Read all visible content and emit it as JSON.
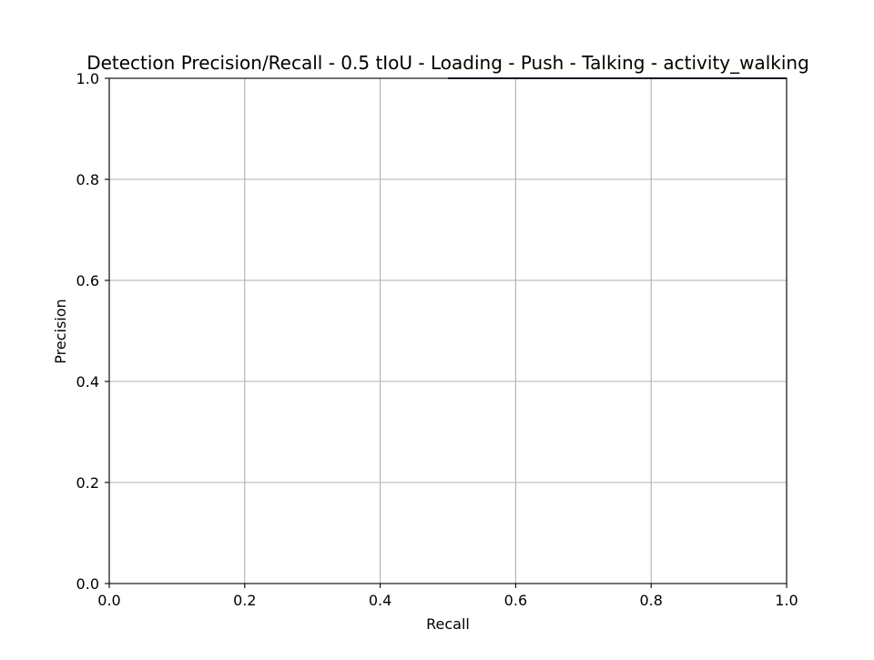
{
  "chart_data": {
    "type": "line",
    "title": "Detection Precision/Recall - 0.5 tIoU - Loading - Push - Talking - activity_walking",
    "xlabel": "Recall",
    "ylabel": "Precision",
    "xlim": [
      0.0,
      1.0
    ],
    "ylim": [
      0.0,
      1.0
    ],
    "xticks": [
      "0.0",
      "0.2",
      "0.4",
      "0.6",
      "0.8",
      "1.0"
    ],
    "yticks": [
      "0.0",
      "0.2",
      "0.4",
      "0.6",
      "0.8",
      "1.0"
    ],
    "grid": true,
    "series": [
      {
        "color": "#1f3a5a",
        "x": [
          0.5,
          1.0
        ],
        "y": [
          1.0,
          1.0
        ]
      }
    ]
  }
}
